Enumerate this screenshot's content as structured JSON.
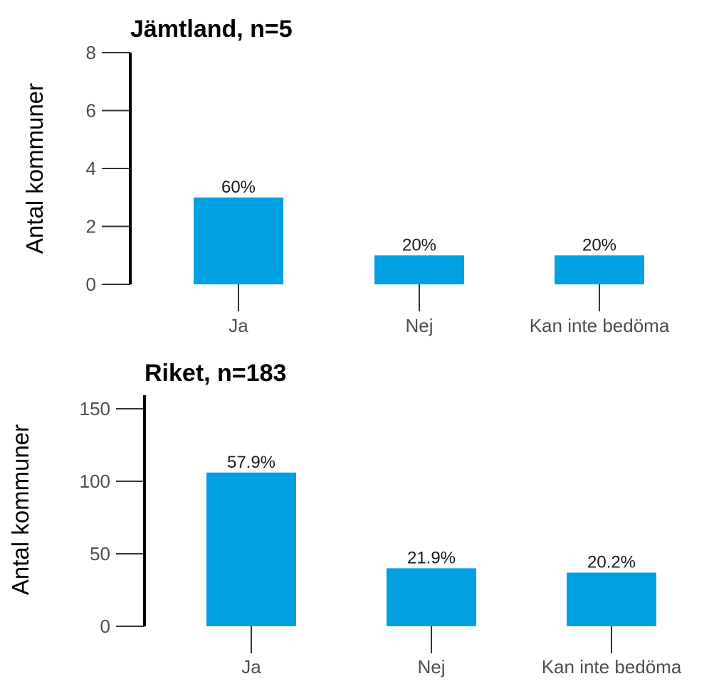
{
  "chart_data": [
    {
      "type": "bar",
      "title": "Jämtland, n=5",
      "ylabel": "Antal kommuner",
      "xlabel": "",
      "categories": [
        "Ja",
        "Nej",
        "Kan inte bedöma"
      ],
      "values": [
        3,
        1,
        1
      ],
      "data_labels": [
        "60%",
        "20%",
        "20%"
      ],
      "yticks": [
        0,
        2,
        4,
        6,
        8
      ],
      "ylim": [
        0,
        8
      ],
      "bar_color": "#00a0e3",
      "grid": false
    },
    {
      "type": "bar",
      "title": "Riket, n=183",
      "ylabel": "Antal kommuner",
      "xlabel": "",
      "categories": [
        "Ja",
        "Nej",
        "Kan inte bedöma"
      ],
      "values": [
        106,
        40,
        37
      ],
      "data_labels": [
        "57.9%",
        "21.9%",
        "20.2%"
      ],
      "yticks": [
        0,
        50,
        100,
        150
      ],
      "ylim": [
        0,
        150
      ],
      "bar_color": "#00a0e3",
      "grid": false
    }
  ]
}
